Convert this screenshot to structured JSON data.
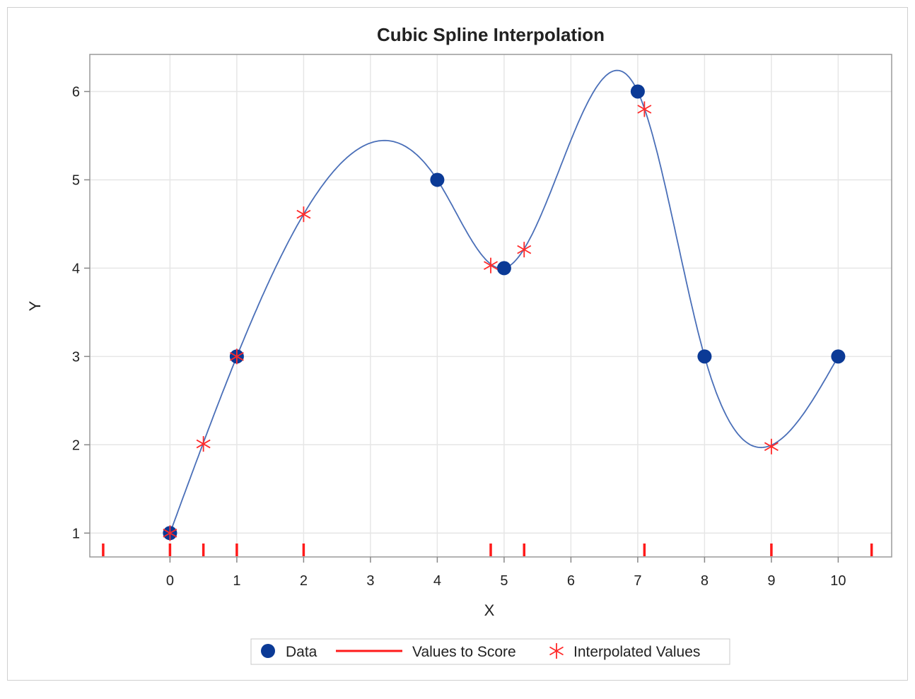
{
  "chart_data": {
    "type": "scatter",
    "title": "Cubic Spline Interpolation",
    "xlabel": "X",
    "ylabel": "Y",
    "xlim": [
      -1.2,
      10.8
    ],
    "ylim": [
      0.73,
      6.42
    ],
    "xticks": [
      0,
      1,
      2,
      3,
      4,
      5,
      6,
      7,
      8,
      9,
      10
    ],
    "yticks": [
      1,
      2,
      3,
      4,
      5,
      6
    ],
    "grid": true,
    "legend_position": "bottom",
    "series": [
      {
        "name": "Data",
        "marker": "filled-circle",
        "color": "#0b3a96",
        "x": [
          0,
          1,
          4,
          5,
          7,
          8,
          10
        ],
        "y": [
          1,
          3,
          5,
          4,
          6,
          3,
          3
        ],
        "fit": "natural cubic spline",
        "line_color": "#4a6fb8"
      },
      {
        "name": "Values to Score",
        "marker": "rug-tick",
        "color": "#ff1a1a",
        "x": [
          -1,
          0,
          0.5,
          1,
          2,
          4.8,
          5.3,
          7.1,
          9,
          10.5
        ]
      },
      {
        "name": "Interpolated Values",
        "marker": "asterisk",
        "color": "#ff2a2a",
        "x": [
          0,
          0.5,
          1,
          2,
          4.8,
          5.3,
          7.1,
          9
        ],
        "y": [
          1,
          2.01,
          3,
          4.61,
          4.03,
          4.21,
          5.8,
          1.98
        ]
      }
    ]
  }
}
